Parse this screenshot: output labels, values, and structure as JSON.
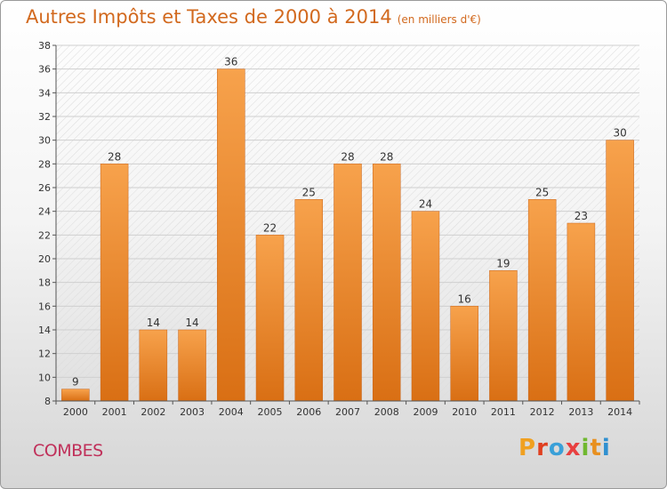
{
  "chart_data": {
    "type": "bar",
    "title": "Autres Impôts et Taxes de 2000 à 2014",
    "subtitle": "(en milliers d'€)",
    "categories": [
      "2000",
      "2001",
      "2002",
      "2003",
      "2004",
      "2005",
      "2006",
      "2007",
      "2008",
      "2009",
      "2010",
      "2011",
      "2012",
      "2013",
      "2014"
    ],
    "values": [
      9,
      28,
      14,
      14,
      36,
      22,
      25,
      28,
      28,
      24,
      16,
      19,
      25,
      23,
      30
    ],
    "ylim": [
      8,
      38
    ],
    "yticks": [
      8,
      10,
      12,
      14,
      16,
      18,
      20,
      22,
      24,
      26,
      28,
      30,
      32,
      34,
      36,
      38
    ],
    "grid": true,
    "bar_color": "#f0882a"
  },
  "place_name": "COMBES",
  "logo_text": "Proxiti",
  "logo_colors": [
    "#f0a020",
    "#e04020",
    "#3aa0d8",
    "#e84040",
    "#70b830",
    "#e89020",
    "#3090d0"
  ]
}
